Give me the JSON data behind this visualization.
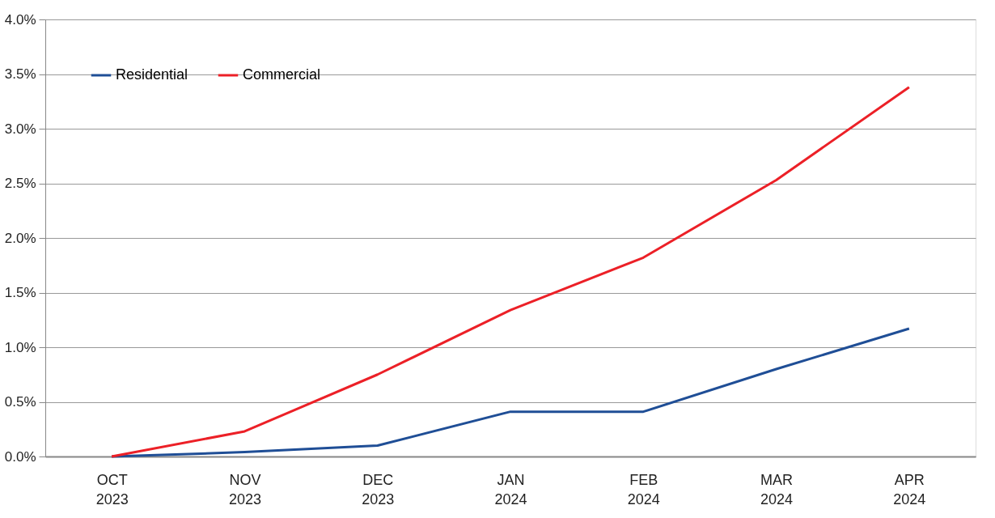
{
  "chart_data": {
    "type": "line",
    "categories": [
      "OCT 2023",
      "NOV 2023",
      "DEC 2023",
      "JAN 2024",
      "FEB 2024",
      "MAR 2024",
      "APR 2024"
    ],
    "series": [
      {
        "name": "Residential",
        "color": "#1f4e96",
        "values": [
          0,
          0.04,
          0.1,
          0.41,
          0.41,
          0.8,
          1.17
        ]
      },
      {
        "name": "Commercial",
        "color": "#ec2027",
        "values": [
          0,
          0.23,
          0.75,
          1.34,
          1.82,
          2.53,
          3.38
        ]
      }
    ],
    "ylim": [
      0,
      4
    ],
    "yticks": [
      {
        "value": 0,
        "label": "0.0%"
      },
      {
        "value": 0.5,
        "label": "0.5%"
      },
      {
        "value": 1,
        "label": "1.0%"
      },
      {
        "value": 1.5,
        "label": "1.5%"
      },
      {
        "value": 2,
        "label": "2.0%"
      },
      {
        "value": 2.5,
        "label": "2.5%"
      },
      {
        "value": 3,
        "label": "3.0%"
      },
      {
        "value": 3.5,
        "label": "3.5%"
      },
      {
        "value": 4,
        "label": "4.0%"
      }
    ],
    "grid": "y",
    "legend": "top left",
    "marker": "none",
    "line_style": "solid"
  }
}
